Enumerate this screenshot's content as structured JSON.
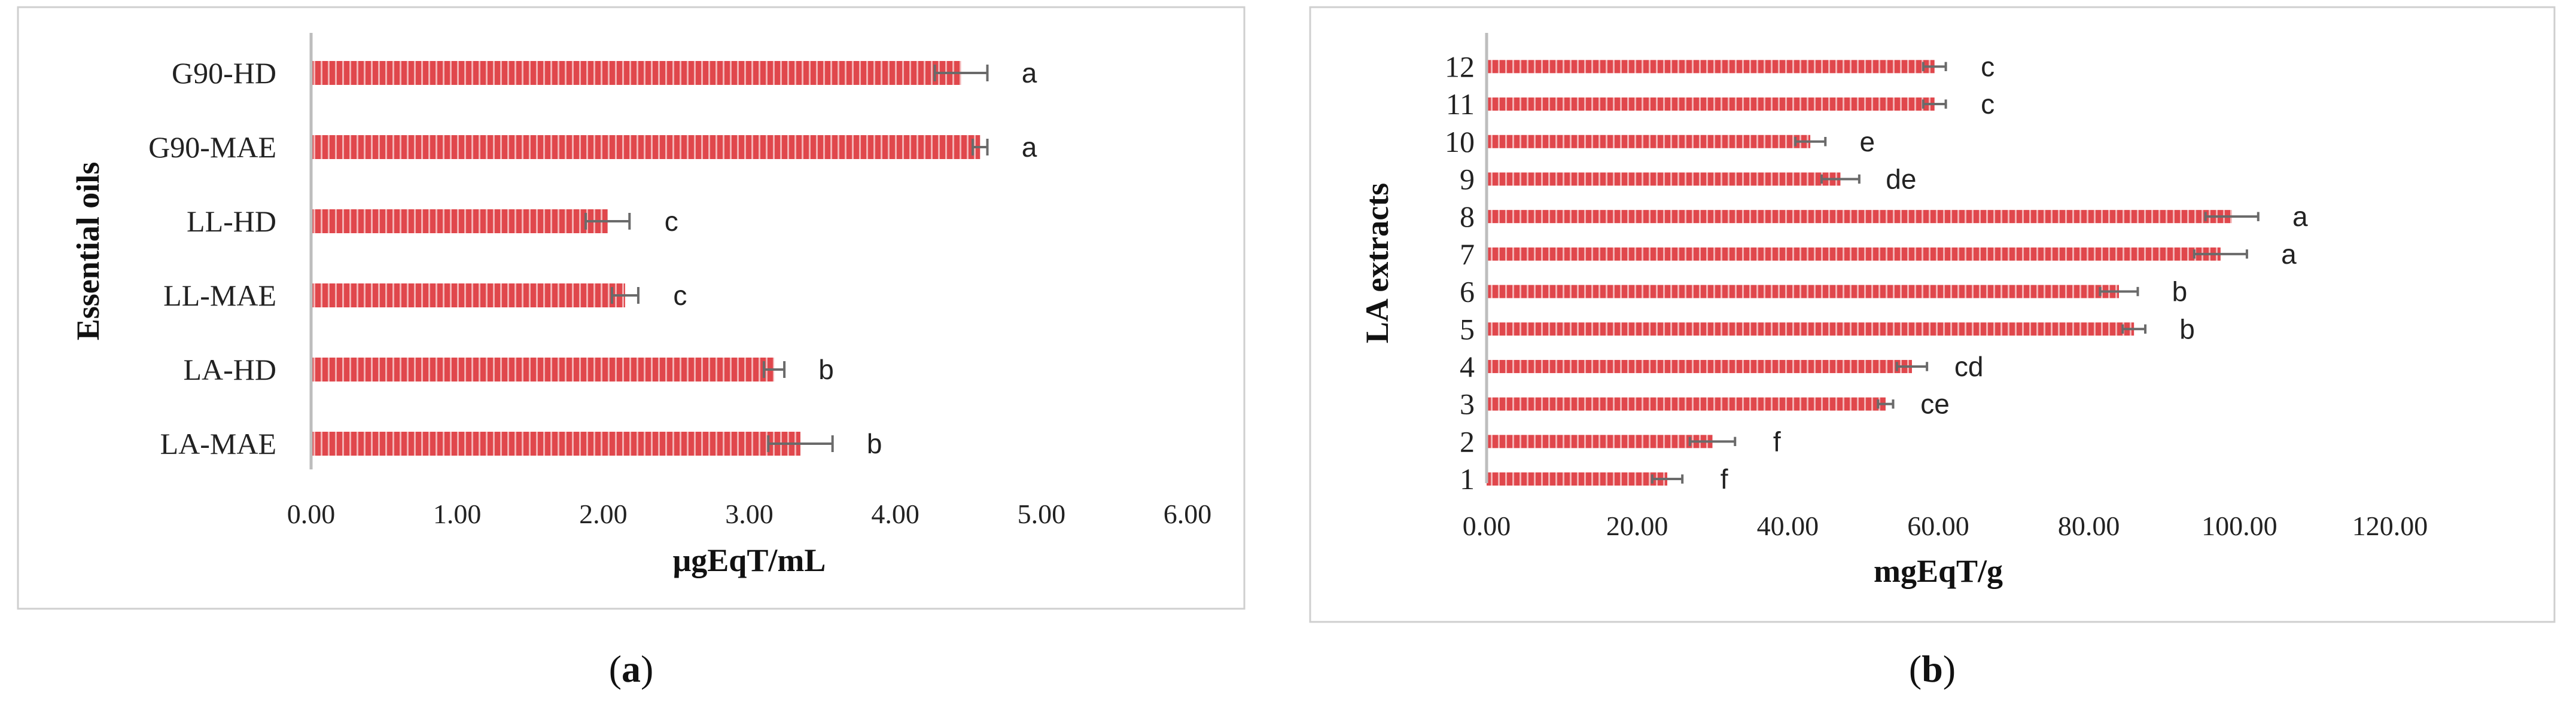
{
  "chart_data": [
    {
      "type": "bar",
      "orientation": "horizontal",
      "panel_label": "a",
      "ylabel": "Essential oils",
      "xlabel": "μgEqT/mL",
      "categories": [
        "G90-HD",
        "G90-MAE",
        "LL-HD",
        "LL-MAE",
        "LA-HD",
        "LA-MAE"
      ],
      "values": [
        4.45,
        4.58,
        2.03,
        2.15,
        3.17,
        3.35
      ],
      "errors": [
        0.18,
        0.05,
        0.15,
        0.09,
        0.07,
        0.22
      ],
      "letters": [
        "a",
        "a",
        "c",
        "c",
        "b",
        "b"
      ],
      "xlim": [
        0,
        6
      ],
      "xticks": [
        "0.00",
        "1.00",
        "2.00",
        "3.00",
        "4.00",
        "5.00",
        "6.00"
      ],
      "grid": false,
      "bar_color": "#e0474c"
    },
    {
      "type": "bar",
      "orientation": "horizontal",
      "panel_label": "b",
      "ylabel": "LA extracts",
      "xlabel": "mgEqT/g",
      "categories": [
        "12",
        "11",
        "10",
        "9",
        "8",
        "7",
        "6",
        "5",
        "4",
        "3",
        "2",
        "1"
      ],
      "values": [
        59.5,
        59.5,
        43.0,
        47.0,
        99.0,
        97.5,
        84.0,
        86.0,
        56.5,
        53.0,
        30.0,
        24.0
      ],
      "errors": [
        1.5,
        1.5,
        2.0,
        2.5,
        3.5,
        3.5,
        2.5,
        1.5,
        2.0,
        1.0,
        3.0,
        2.0
      ],
      "letters": [
        "c",
        "c",
        "e",
        "de",
        "a",
        "a",
        "b",
        "b",
        "cd",
        "ce",
        "f",
        "f"
      ],
      "xlim": [
        0,
        120
      ],
      "xticks": [
        "0.00",
        "20.00",
        "40.00",
        "60.00",
        "80.00",
        "100.00",
        "120.00"
      ],
      "grid": false,
      "bar_color": "#e0474c"
    }
  ]
}
